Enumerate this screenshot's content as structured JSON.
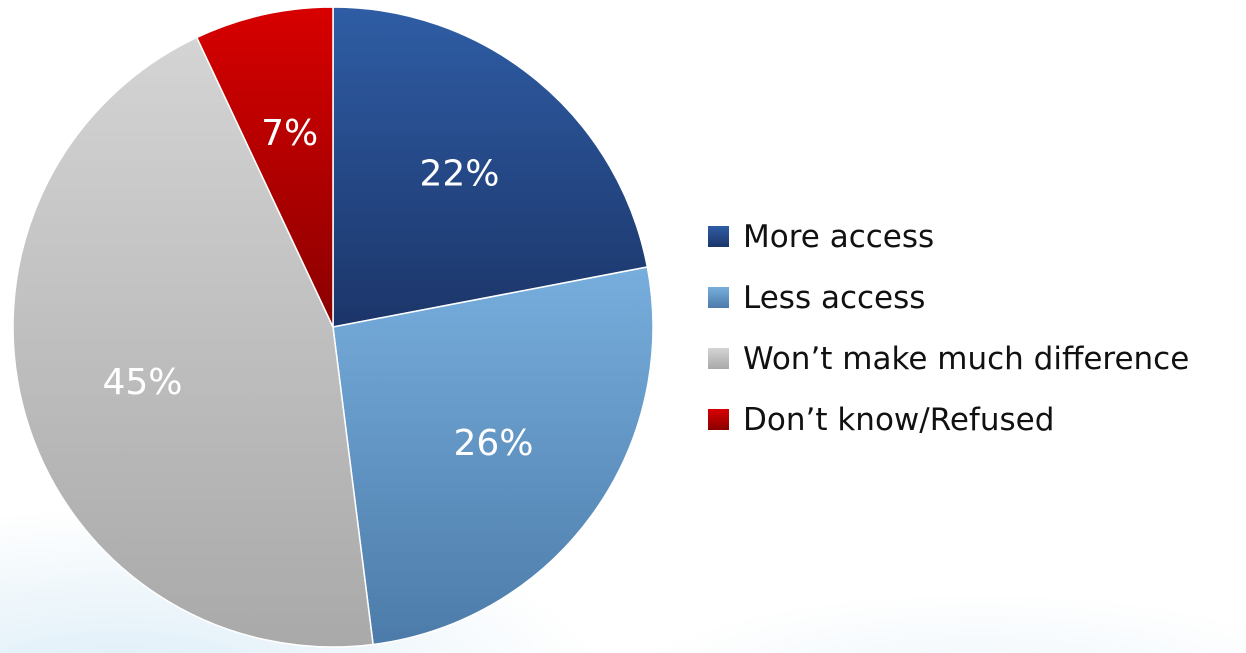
{
  "chart_data": {
    "type": "pie",
    "categories": [
      "More access",
      "Less access",
      "Won’t make much difference",
      "Don’t know/Refused"
    ],
    "values": [
      22,
      26,
      45,
      7
    ],
    "labels": [
      "22%",
      "26%",
      "45%",
      "7%"
    ],
    "start_angle_deg": 0,
    "direction": "clockwise",
    "colors": [
      {
        "light": "#2f5da5",
        "dark": "#1b3569"
      },
      {
        "light": "#77aedd",
        "dark": "#4c7ba9"
      },
      {
        "light": "#d4d4d4",
        "dark": "#a9a9a9"
      },
      {
        "light": "#d80000",
        "dark": "#8a0000"
      }
    ],
    "legend_position": "right"
  }
}
